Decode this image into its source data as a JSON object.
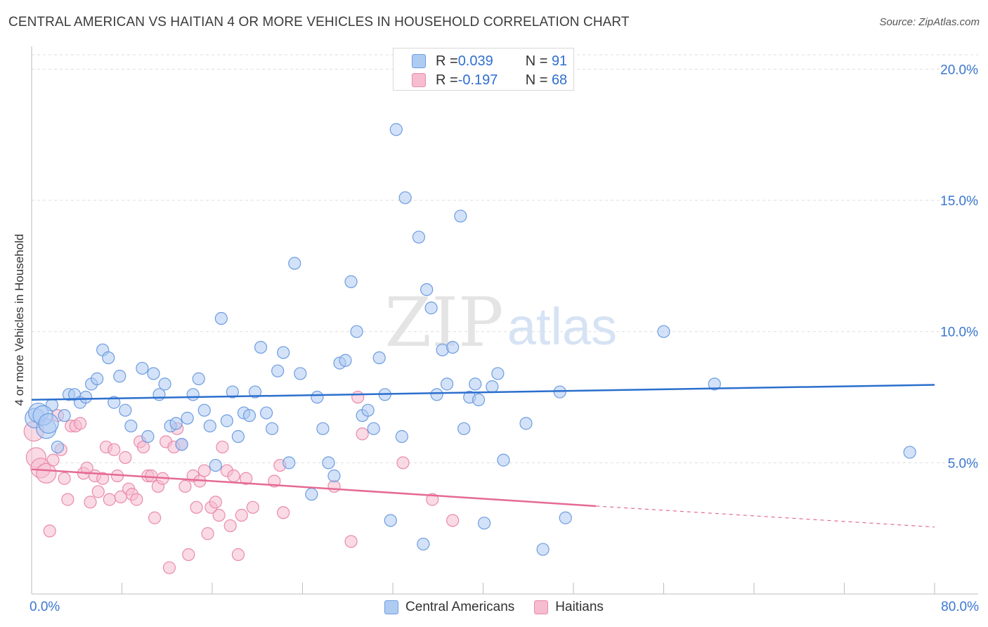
{
  "header": {
    "title": "CENTRAL AMERICAN VS HAITIAN 4 OR MORE VEHICLES IN HOUSEHOLD CORRELATION CHART",
    "source": "Source: ZipAtlas.com"
  },
  "watermark": {
    "zip": "ZIP",
    "atlas": "atlas"
  },
  "legend_top": [
    {
      "r_label": "R = ",
      "r_value": "0.039",
      "n_label": "N = ",
      "n_value": "91",
      "color": "#aecbf2"
    },
    {
      "r_label": "R = ",
      "r_value": "-0.197",
      "n_label": "N = ",
      "n_value": "68",
      "color": "#f6bccf"
    }
  ],
  "colors": {
    "blue_fill": "#aecbf2",
    "blue_stroke": "#6d9de0",
    "blue_line": "#2b6fce",
    "pink_fill": "#f6bccf",
    "pink_stroke": "#e98bab",
    "pink_line": "#e56a94",
    "axis_label": "#3a77d0",
    "grid": "#dedede"
  },
  "chart_data": {
    "type": "scatter",
    "title": "CENTRAL AMERICAN VS HAITIAN 4 OR MORE VEHICLES IN HOUSEHOLD CORRELATION CHART",
    "xlabel": "",
    "ylabel": "4 or more Vehicles in Household",
    "xlim": [
      0,
      80
    ],
    "ylim": [
      0,
      20.6
    ],
    "x_tick_labels": [
      "0.0%",
      "80.0%"
    ],
    "y_ticks": [
      5,
      10,
      15,
      20
    ],
    "y_tick_labels": [
      "5.0%",
      "10.0%",
      "15.0%",
      "20.0%"
    ],
    "grid": true,
    "legend_position": "bottom",
    "series": [
      {
        "name": "Central Americans",
        "r": 0.039,
        "n": 91,
        "trend": {
          "x": [
            0,
            80
          ],
          "y": [
            7.4,
            7.97
          ]
        },
        "points": [
          [
            0.3,
            6.7
          ],
          [
            0.6,
            6.9
          ],
          [
            1.3,
            6.3
          ],
          [
            1.8,
            7.2
          ],
          [
            2.3,
            5.6
          ],
          [
            2.9,
            6.8
          ],
          [
            3.3,
            7.6
          ],
          [
            3.8,
            7.6
          ],
          [
            4.3,
            7.3
          ],
          [
            4.8,
            7.5
          ],
          [
            5.3,
            8.0
          ],
          [
            5.8,
            8.2
          ],
          [
            6.3,
            9.3
          ],
          [
            6.8,
            9.0
          ],
          [
            7.3,
            7.3
          ],
          [
            7.8,
            8.3
          ],
          [
            8.3,
            7.0
          ],
          [
            8.8,
            6.4
          ],
          [
            9.8,
            8.6
          ],
          [
            10.3,
            6.0
          ],
          [
            10.8,
            8.4
          ],
          [
            11.3,
            7.6
          ],
          [
            11.8,
            8.0
          ],
          [
            12.3,
            6.4
          ],
          [
            12.8,
            6.5
          ],
          [
            13.3,
            5.7
          ],
          [
            13.8,
            6.7
          ],
          [
            14.3,
            7.6
          ],
          [
            14.8,
            8.2
          ],
          [
            15.3,
            7.0
          ],
          [
            15.8,
            6.4
          ],
          [
            16.3,
            4.9
          ],
          [
            16.8,
            10.5
          ],
          [
            17.3,
            6.6
          ],
          [
            17.8,
            7.7
          ],
          [
            18.3,
            6.0
          ],
          [
            18.8,
            6.9
          ],
          [
            19.3,
            6.8
          ],
          [
            19.8,
            7.7
          ],
          [
            20.3,
            9.4
          ],
          [
            20.8,
            6.9
          ],
          [
            21.3,
            6.3
          ],
          [
            21.8,
            8.5
          ],
          [
            22.3,
            9.2
          ],
          [
            22.8,
            5.0
          ],
          [
            23.3,
            12.6
          ],
          [
            23.8,
            8.4
          ],
          [
            24.8,
            3.8
          ],
          [
            25.3,
            7.5
          ],
          [
            25.8,
            6.3
          ],
          [
            26.3,
            5.0
          ],
          [
            26.8,
            4.5
          ],
          [
            27.3,
            8.8
          ],
          [
            27.8,
            8.9
          ],
          [
            28.3,
            11.9
          ],
          [
            28.8,
            10.0
          ],
          [
            29.3,
            6.8
          ],
          [
            29.8,
            7.0
          ],
          [
            30.3,
            6.3
          ],
          [
            30.8,
            9.0
          ],
          [
            31.3,
            7.6
          ],
          [
            31.8,
            2.8
          ],
          [
            32.3,
            17.7
          ],
          [
            32.8,
            6.0
          ],
          [
            33.1,
            15.1
          ],
          [
            34.3,
            13.6
          ],
          [
            34.7,
            1.9
          ],
          [
            35.0,
            11.6
          ],
          [
            35.4,
            10.9
          ],
          [
            35.9,
            7.6
          ],
          [
            36.4,
            9.3
          ],
          [
            36.8,
            8.0
          ],
          [
            37.3,
            9.4
          ],
          [
            38.0,
            14.4
          ],
          [
            38.3,
            6.3
          ],
          [
            38.8,
            7.5
          ],
          [
            39.3,
            8.0
          ],
          [
            39.6,
            7.4
          ],
          [
            40.1,
            2.7
          ],
          [
            40.8,
            7.9
          ],
          [
            41.3,
            8.4
          ],
          [
            41.8,
            5.1
          ],
          [
            43.8,
            6.5
          ],
          [
            45.3,
            1.7
          ],
          [
            46.8,
            7.7
          ],
          [
            47.3,
            2.9
          ],
          [
            56.0,
            10.0
          ],
          [
            60.5,
            8.0
          ],
          [
            77.8,
            5.4
          ],
          [
            1.0,
            6.8
          ],
          [
            1.5,
            6.5
          ]
        ]
      },
      {
        "name": "Haitians",
        "r": -0.197,
        "n": 68,
        "trend": {
          "x": [
            0,
            50
          ],
          "y": [
            4.75,
            3.35
          ]
        },
        "trend_dashed": {
          "x": [
            50,
            80
          ],
          "y": [
            3.35,
            2.55
          ]
        },
        "points": [
          [
            0.2,
            6.2
          ],
          [
            0.4,
            5.2
          ],
          [
            0.8,
            4.8
          ],
          [
            1.3,
            4.6
          ],
          [
            1.6,
            2.4
          ],
          [
            1.9,
            5.1
          ],
          [
            2.3,
            6.8
          ],
          [
            2.6,
            5.5
          ],
          [
            2.9,
            4.4
          ],
          [
            3.2,
            3.6
          ],
          [
            3.5,
            6.4
          ],
          [
            3.9,
            6.4
          ],
          [
            4.3,
            6.5
          ],
          [
            4.6,
            4.6
          ],
          [
            4.9,
            4.8
          ],
          [
            5.2,
            3.5
          ],
          [
            5.6,
            4.5
          ],
          [
            5.9,
            3.9
          ],
          [
            6.3,
            4.4
          ],
          [
            6.6,
            5.6
          ],
          [
            6.9,
            3.6
          ],
          [
            7.3,
            5.5
          ],
          [
            7.6,
            4.5
          ],
          [
            7.9,
            3.7
          ],
          [
            8.3,
            5.2
          ],
          [
            8.6,
            4.0
          ],
          [
            8.9,
            3.8
          ],
          [
            9.3,
            3.6
          ],
          [
            9.6,
            5.8
          ],
          [
            9.9,
            5.6
          ],
          [
            10.3,
            4.5
          ],
          [
            10.6,
            4.5
          ],
          [
            10.9,
            2.9
          ],
          [
            11.2,
            4.1
          ],
          [
            11.6,
            4.4
          ],
          [
            11.9,
            5.8
          ],
          [
            12.2,
            1.0
          ],
          [
            12.6,
            5.6
          ],
          [
            12.9,
            6.3
          ],
          [
            13.3,
            5.7
          ],
          [
            13.6,
            4.1
          ],
          [
            13.9,
            1.5
          ],
          [
            14.3,
            4.5
          ],
          [
            14.6,
            3.3
          ],
          [
            14.9,
            4.3
          ],
          [
            15.3,
            4.7
          ],
          [
            15.6,
            2.3
          ],
          [
            15.9,
            3.3
          ],
          [
            16.3,
            3.5
          ],
          [
            16.6,
            3.0
          ],
          [
            16.9,
            5.6
          ],
          [
            17.3,
            4.7
          ],
          [
            17.6,
            2.6
          ],
          [
            17.9,
            4.5
          ],
          [
            18.3,
            1.5
          ],
          [
            18.6,
            3.0
          ],
          [
            19.0,
            4.4
          ],
          [
            19.6,
            3.3
          ],
          [
            21.5,
            4.3
          ],
          [
            22.0,
            4.9
          ],
          [
            22.3,
            3.1
          ],
          [
            26.8,
            4.1
          ],
          [
            28.3,
            2.0
          ],
          [
            28.9,
            7.5
          ],
          [
            29.3,
            6.1
          ],
          [
            32.9,
            5.0
          ],
          [
            35.5,
            3.6
          ],
          [
            37.3,
            2.8
          ]
        ]
      }
    ]
  },
  "bottom_legend": [
    {
      "label": "Central Americans"
    },
    {
      "label": "Haitians"
    }
  ]
}
